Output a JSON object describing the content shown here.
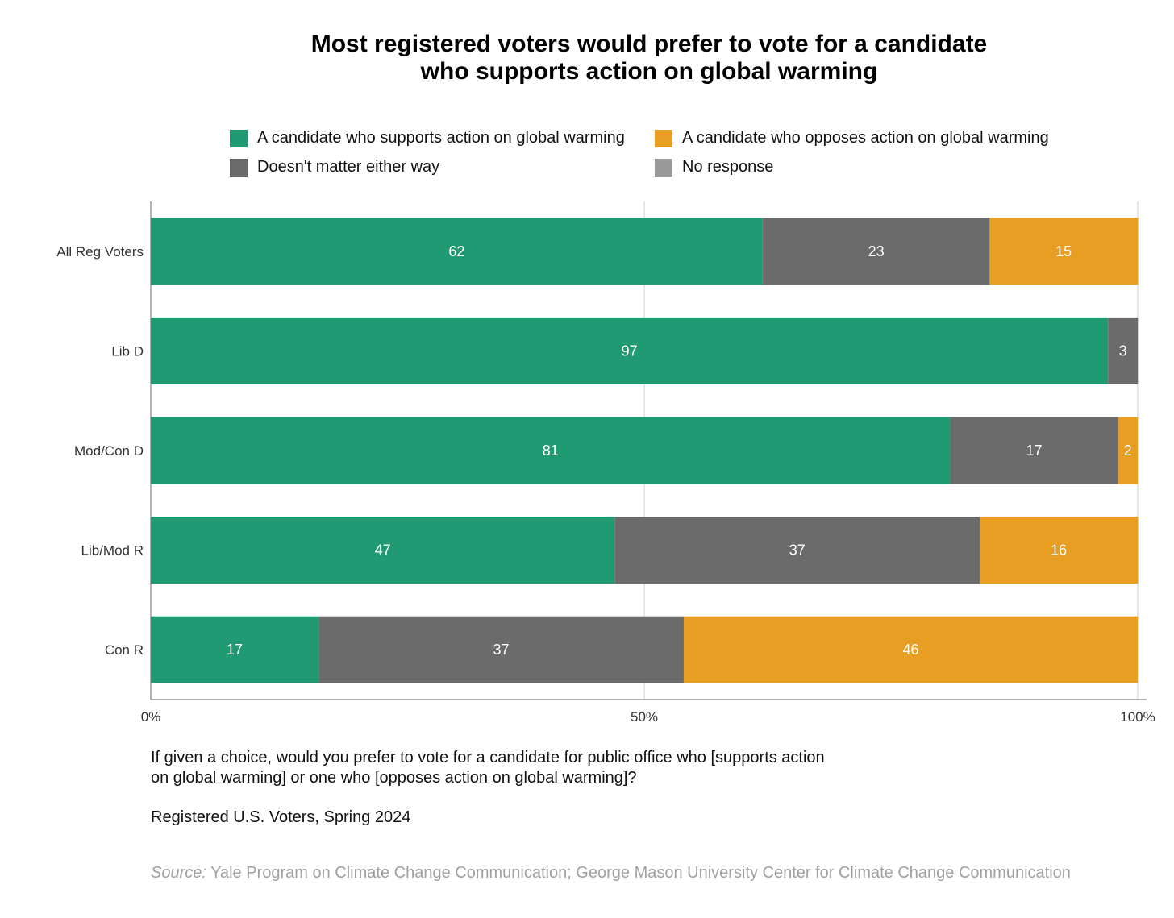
{
  "chart_data": {
    "type": "bar",
    "orientation": "horizontal-stacked",
    "title": "Most registered voters would prefer to vote for a candidate who supports action on global warming",
    "title_lines": [
      "Most registered voters would prefer to vote for a candidate",
      "who supports action on global warming"
    ],
    "categories": [
      "All Reg Voters",
      "Lib D",
      "Mod/Con D",
      "Lib/Mod R",
      "Con R"
    ],
    "series": [
      {
        "name": "A candidate who supports action on global warming",
        "color": "#1f9a72",
        "values": [
          62,
          97,
          81,
          47,
          17
        ],
        "labels": [
          "62",
          "97",
          "81",
          "47",
          "17"
        ]
      },
      {
        "name": "Doesn't matter either way",
        "color": "#6b6b6b",
        "values": [
          23,
          3,
          17,
          37,
          37
        ],
        "labels": [
          "23",
          "3",
          "17",
          "37",
          "37"
        ]
      },
      {
        "name": "A candidate who opposes action on global warming",
        "color": "#e89e23",
        "values": [
          15,
          0.5,
          2,
          16,
          46
        ],
        "labels": [
          "15",
          "",
          "2",
          "16",
          "46"
        ]
      },
      {
        "name": "No response",
        "color": "#999999",
        "values": [
          0.2,
          0,
          0,
          0.7,
          0
        ],
        "labels": [
          "",
          "",
          "",
          "",
          ""
        ]
      }
    ],
    "legend_order": [
      0,
      2,
      1,
      3
    ],
    "xlim": [
      0,
      100
    ],
    "x_ticks": [
      "0%",
      "50%",
      "100%"
    ],
    "grid": true,
    "legend_position": "top"
  },
  "notes": {
    "question_lines": [
      "If given a choice, would you prefer to vote for a candidate for public office who [supports action",
      "on global warming] or one who [opposes action on global warming]?"
    ],
    "sample": "Registered U.S. Voters, Spring 2024",
    "source_label": "Source:",
    "source_text": " Yale Program on Climate Change Communication; George Mason University Center for Climate Change Communication"
  }
}
